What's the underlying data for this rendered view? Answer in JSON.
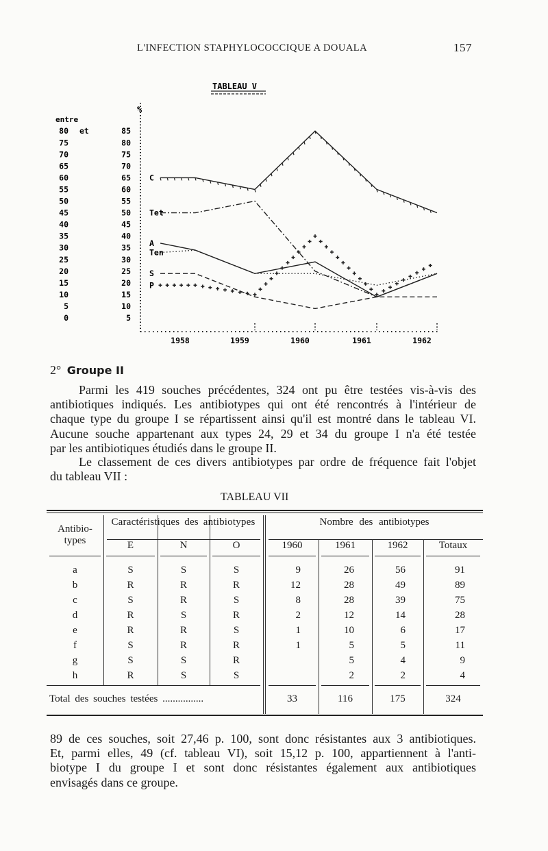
{
  "header": {
    "running_title": "L'INFECTION STAPHYLOCOCCIQUE A DOUALA",
    "page_number": "157"
  },
  "chart_data": {
    "type": "line",
    "title": "TABLEAU V",
    "ylabel": "%",
    "y_tick_header": "entre",
    "y_ticks": [
      {
        "low": "80",
        "mid": "et",
        "high": "85"
      },
      {
        "low": "75",
        "high": "80"
      },
      {
        "low": "70",
        "high": "75"
      },
      {
        "low": "65",
        "high": "70"
      },
      {
        "low": "60",
        "high": "65"
      },
      {
        "low": "55",
        "high": "60"
      },
      {
        "low": "50",
        "high": "55"
      },
      {
        "low": "45",
        "high": "50"
      },
      {
        "low": "40",
        "high": "45"
      },
      {
        "low": "35",
        "high": "40"
      },
      {
        "low": "30",
        "high": "35"
      },
      {
        "low": "25",
        "high": "30"
      },
      {
        "low": "20",
        "high": "25"
      },
      {
        "low": "15",
        "high": "20"
      },
      {
        "low": "10",
        "high": "15"
      },
      {
        "low": "5",
        "high": "10"
      },
      {
        "low": "0",
        "high": "5"
      }
    ],
    "ylim": [
      0,
      85
    ],
    "categories": [
      "1958",
      "1959",
      "1960",
      "1961",
      "1962"
    ],
    "grid": false,
    "series": [
      {
        "name": "C",
        "style": "solid-ticked",
        "label_value": 60,
        "values": [
          60,
          55,
          80,
          55,
          45
        ]
      },
      {
        "name": "Tet",
        "style": "dash-dot",
        "label_value": 45,
        "values": [
          45,
          50,
          20,
          9,
          19
        ]
      },
      {
        "name": "A",
        "style": "solid",
        "label_value": 32,
        "values": [
          29,
          19,
          24,
          9,
          19
        ]
      },
      {
        "name": "Ten",
        "style": "dotted",
        "label_value": 28,
        "values": [
          29,
          19,
          19,
          14,
          19
        ]
      },
      {
        "name": "S",
        "style": "dashed",
        "label_value": 19,
        "values": [
          19,
          9,
          4,
          9,
          9
        ]
      },
      {
        "name": "P",
        "style": "crosses",
        "label_value": 14,
        "values": [
          14,
          10,
          35,
          10,
          24
        ]
      }
    ]
  },
  "section": {
    "number": "2°",
    "title": "Groupe II"
  },
  "paragraph1": [
    "Parmi les 419 souches précédentes, 324 ont pu être testées vis-à-vis des",
    "antibiotiques indiqués. Les antibiotypes qui ont été rencontrés à l'intérieur de",
    "chaque type du groupe I se répartissent ainsi qu'il est montré dans le tableau VI.",
    "Aucune souche appartenant aux types 24, 29 et 34 du groupe I n'a été testée",
    "par les antibiotiques étudiés dans le groupe II."
  ],
  "paragraph2": [
    "Le classement de ces divers antibiotypes par ordre de fréquence fait l'objet",
    "du tableau VII :"
  ],
  "table": {
    "title": "TABLEAU VII",
    "col_antibiotypes": "Antibio-\ntypes",
    "group_caracteristiques": "Caractéristiques des antibiotypes",
    "group_nombre": "Nombre des antibiotypes",
    "sub_headers": [
      "E",
      "N",
      "O",
      "1960",
      "1961",
      "1962",
      "Totaux"
    ],
    "rows": [
      [
        "a",
        "S",
        "S",
        "S",
        "9",
        "26",
        "56",
        "91"
      ],
      [
        "b",
        "R",
        "R",
        "R",
        "12",
        "28",
        "49",
        "89"
      ],
      [
        "c",
        "S",
        "R",
        "S",
        "8",
        "28",
        "39",
        "75"
      ],
      [
        "d",
        "R",
        "S",
        "R",
        "2",
        "12",
        "14",
        "28"
      ],
      [
        "e",
        "R",
        "R",
        "S",
        "1",
        "10",
        "6",
        "17"
      ],
      [
        "f",
        "S",
        "R",
        "R",
        "1",
        "5",
        "5",
        "11"
      ],
      [
        "g",
        "S",
        "S",
        "R",
        "",
        "5",
        "4",
        "9"
      ],
      [
        "h",
        "R",
        "S",
        "S",
        "",
        "2",
        "2",
        "4"
      ]
    ],
    "total_label": "Total des souches testées ................",
    "totals": [
      "33",
      "116",
      "175",
      "324"
    ]
  },
  "paragraph3": [
    "89 de ces souches, soit 27,46 p. 100, sont donc résistantes aux 3 antibiotiques.",
    "Et, parmi elles, 49 (cf. tableau VI), soit 15,12 p. 100, appartiennent à l'anti-",
    "biotype I du groupe I et sont donc résistantes également aux antibiotiques",
    "envisagés dans ce groupe."
  ]
}
